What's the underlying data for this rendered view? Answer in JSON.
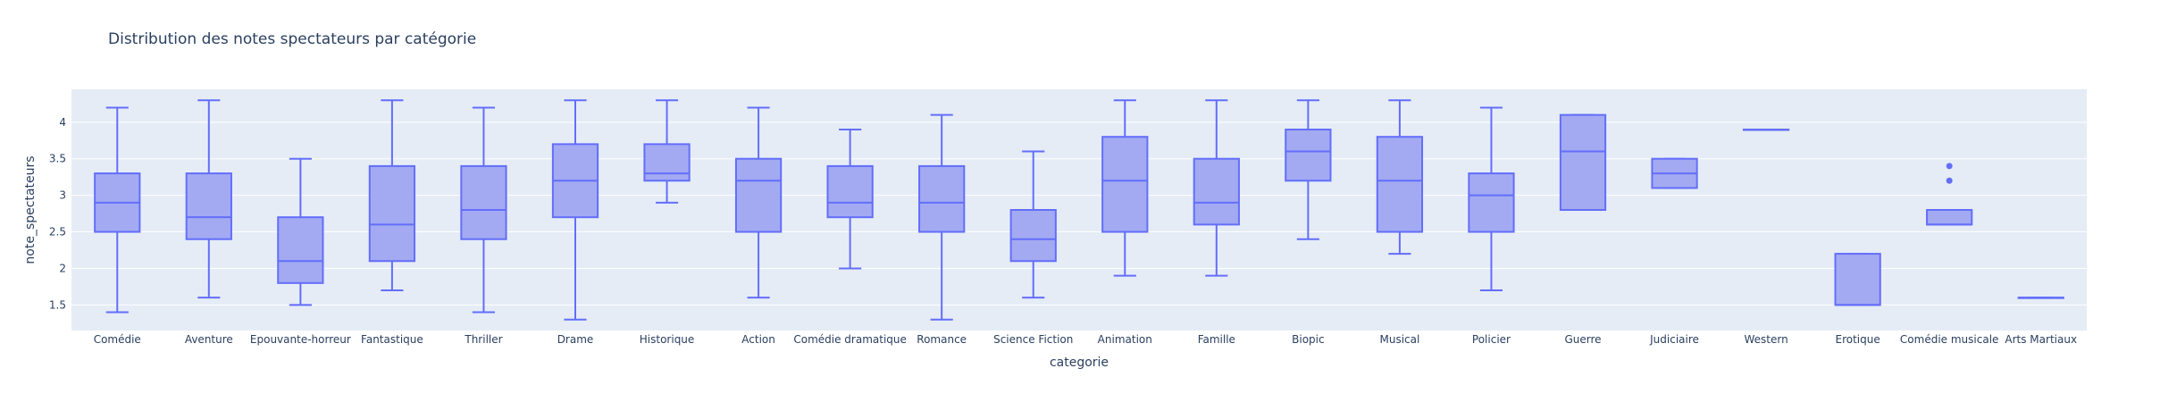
{
  "chart_data": {
    "type": "box",
    "title": "Distribution des notes spectateurs par catégorie",
    "xlabel": "categorie",
    "ylabel": "note_spectateurs",
    "ylim": [
      1.15,
      4.45
    ],
    "yticks": [
      "1.5",
      "2",
      "2.5",
      "3",
      "3.5",
      "4"
    ],
    "grid": true,
    "colors": {
      "box_fill": "#a3aaf2",
      "box_line": "#636efa",
      "plot_bg": "#e5ecf6",
      "grid": "#ffffff",
      "text": "#2a3f5f"
    },
    "categories": [
      "Comédie",
      "Aventure",
      "Epouvante-horreur",
      "Fantastique",
      "Thriller",
      "Drame",
      "Historique",
      "Action",
      "Comédie dramatique",
      "Romance",
      "Science Fiction",
      "Animation",
      "Famille",
      "Biopic",
      "Musical",
      "Policier",
      "Guerre",
      "Judiciaire",
      "Western",
      "Erotique",
      "Comédie musicale",
      "Arts Martiaux"
    ],
    "boxes": [
      {
        "min": 1.4,
        "q1": 2.5,
        "median": 2.9,
        "q3": 3.3,
        "max": 4.2,
        "outliers": []
      },
      {
        "min": 1.6,
        "q1": 2.4,
        "median": 2.7,
        "q3": 3.3,
        "max": 4.3,
        "outliers": []
      },
      {
        "min": 1.5,
        "q1": 1.8,
        "median": 2.1,
        "q3": 2.7,
        "max": 3.5,
        "outliers": []
      },
      {
        "min": 1.7,
        "q1": 2.1,
        "median": 2.6,
        "q3": 3.4,
        "max": 4.3,
        "outliers": []
      },
      {
        "min": 1.4,
        "q1": 2.4,
        "median": 2.8,
        "q3": 3.4,
        "max": 4.2,
        "outliers": []
      },
      {
        "min": 1.3,
        "q1": 2.7,
        "median": 3.2,
        "q3": 3.7,
        "max": 4.3,
        "outliers": []
      },
      {
        "min": 2.9,
        "q1": 3.2,
        "median": 3.3,
        "q3": 3.7,
        "max": 4.3,
        "outliers": []
      },
      {
        "min": 1.6,
        "q1": 2.5,
        "median": 3.2,
        "q3": 3.5,
        "max": 4.2,
        "outliers": []
      },
      {
        "min": 2.0,
        "q1": 2.7,
        "median": 2.9,
        "q3": 3.4,
        "max": 3.9,
        "outliers": []
      },
      {
        "min": 1.3,
        "q1": 2.5,
        "median": 2.9,
        "q3": 3.4,
        "max": 4.1,
        "outliers": []
      },
      {
        "min": 1.6,
        "q1": 2.1,
        "median": 2.4,
        "q3": 2.8,
        "max": 3.6,
        "outliers": []
      },
      {
        "min": 1.9,
        "q1": 2.5,
        "median": 3.2,
        "q3": 3.8,
        "max": 4.3,
        "outliers": []
      },
      {
        "min": 1.9,
        "q1": 2.6,
        "median": 2.9,
        "q3": 3.5,
        "max": 4.3,
        "outliers": []
      },
      {
        "min": 2.4,
        "q1": 3.2,
        "median": 3.6,
        "q3": 3.9,
        "max": 4.3,
        "outliers": []
      },
      {
        "min": 2.2,
        "q1": 2.5,
        "median": 3.2,
        "q3": 3.8,
        "max": 4.3,
        "outliers": []
      },
      {
        "min": 1.7,
        "q1": 2.5,
        "median": 3.0,
        "q3": 3.3,
        "max": 4.2,
        "outliers": []
      },
      {
        "min": 2.8,
        "q1": 2.8,
        "median": 3.6,
        "q3": 4.1,
        "max": 4.1,
        "outliers": []
      },
      {
        "min": 3.1,
        "q1": 3.1,
        "median": 3.3,
        "q3": 3.5,
        "max": 3.5,
        "outliers": []
      },
      {
        "min": 3.9,
        "q1": 3.9,
        "median": 3.9,
        "q3": 3.9,
        "max": 3.9,
        "outliers": []
      },
      {
        "min": 1.5,
        "q1": 1.5,
        "median": 1.5,
        "q3": 2.2,
        "max": 2.2,
        "outliers": []
      },
      {
        "min": 2.6,
        "q1": 2.6,
        "median": 2.6,
        "q3": 2.8,
        "max": 2.8,
        "outliers": [
          3.2,
          3.4
        ]
      },
      {
        "min": 1.6,
        "q1": 1.6,
        "median": 1.6,
        "q3": 1.6,
        "max": 1.6,
        "outliers": []
      }
    ]
  }
}
